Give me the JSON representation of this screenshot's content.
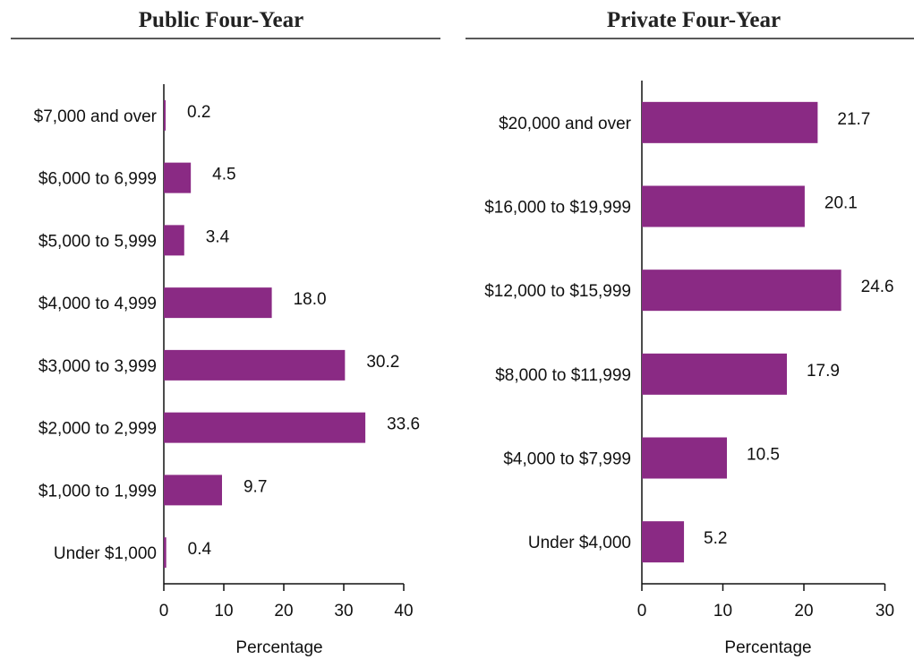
{
  "chart_data": [
    {
      "type": "bar",
      "orientation": "horizontal",
      "title": "Public Four-Year",
      "categories": [
        "$7,000 and over",
        "$6,000 to 6,999",
        "$5,000 to 5,999",
        "$4,000 to 4,999",
        "$3,000 to 3,999",
        "$2,000 to 2,999",
        "$1,000 to 1,999",
        "Under $1,000"
      ],
      "values": [
        0.2,
        4.5,
        3.4,
        18.0,
        30.2,
        33.6,
        9.7,
        0.4
      ],
      "value_labels": [
        "0.2",
        "4.5",
        "3.4",
        "18.0",
        "30.2",
        "33.6",
        "9.7",
        "0.4"
      ],
      "xlabel": "Percentage",
      "xlim": [
        0,
        40
      ],
      "xticks": [
        0,
        10,
        20,
        30,
        40
      ],
      "grid": false,
      "bar_color": "#8a2a84"
    },
    {
      "type": "bar",
      "orientation": "horizontal",
      "title": "Private Four-Year",
      "categories": [
        "$20,000 and over",
        "$16,000 to $19,999",
        "$12,000 to $15,999",
        "$8,000 to $11,999",
        "$4,000 to $7,999",
        "Under $4,000"
      ],
      "values": [
        21.7,
        20.1,
        24.6,
        17.9,
        10.5,
        5.2
      ],
      "value_labels": [
        "21.7",
        "20.1",
        "24.6",
        "17.9",
        "10.5",
        "5.2"
      ],
      "xlabel": "Percentage",
      "xlim": [
        0,
        30
      ],
      "xticks": [
        0,
        10,
        20,
        30
      ],
      "grid": false,
      "bar_color": "#8a2a84"
    }
  ]
}
